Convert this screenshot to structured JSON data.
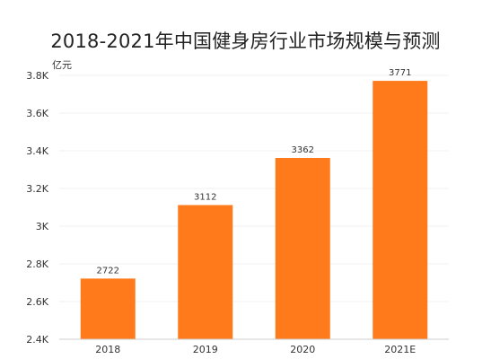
{
  "chart_data": {
    "type": "bar",
    "title": "2018-2021年中国健身房行业市场规模与预测",
    "ylabel": "亿元",
    "categories": [
      "2018",
      "2019",
      "2020",
      "2021E"
    ],
    "values": [
      2722,
      3112,
      3362,
      3771
    ],
    "data_labels": [
      "2722",
      "3112",
      "3362",
      "3771"
    ],
    "ylim": [
      2400,
      3800
    ],
    "yticks": [
      2400,
      2600,
      2800,
      3000,
      3200,
      3400,
      3600,
      3800
    ],
    "ytick_labels": [
      "2.4K",
      "2.6K",
      "2.8K",
      "3K",
      "3.2K",
      "3.4K",
      "3.6K",
      "3.8K"
    ],
    "grid": true,
    "bar_color": "#FF7A1A"
  }
}
